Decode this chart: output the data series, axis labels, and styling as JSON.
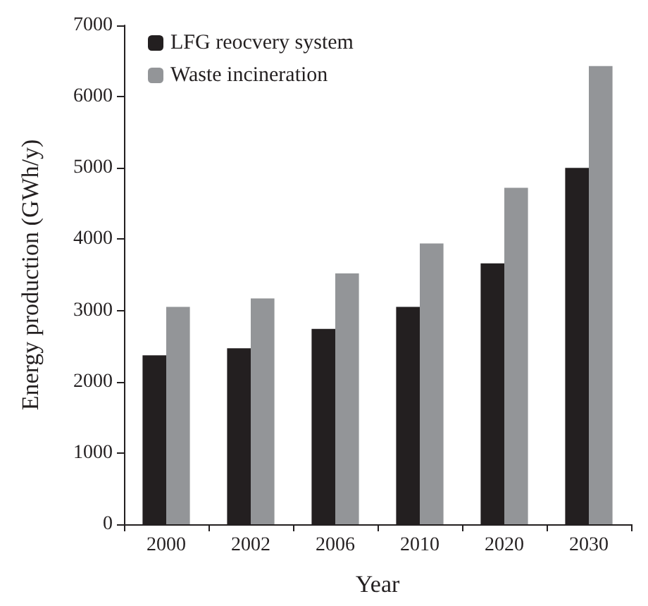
{
  "chart_data": {
    "type": "bar",
    "xlabel": "Year",
    "ylabel": "Energy production (GWh/y)",
    "categories": [
      "2000",
      "2002",
      "2006",
      "2010",
      "2020",
      "2030"
    ],
    "series": [
      {
        "name": "LFG reocvery system",
        "color": "#231f20",
        "values": [
          2370,
          2470,
          2740,
          3050,
          3660,
          5000
        ]
      },
      {
        "name": "Waste incineration",
        "color": "#939598",
        "values": [
          3050,
          3170,
          3520,
          3940,
          4720,
          6430
        ]
      }
    ],
    "ylim": [
      0,
      7000
    ],
    "yticks": [
      0,
      1000,
      2000,
      3000,
      4000,
      5000,
      6000,
      7000
    ],
    "grid": false,
    "legend": "top left"
  }
}
